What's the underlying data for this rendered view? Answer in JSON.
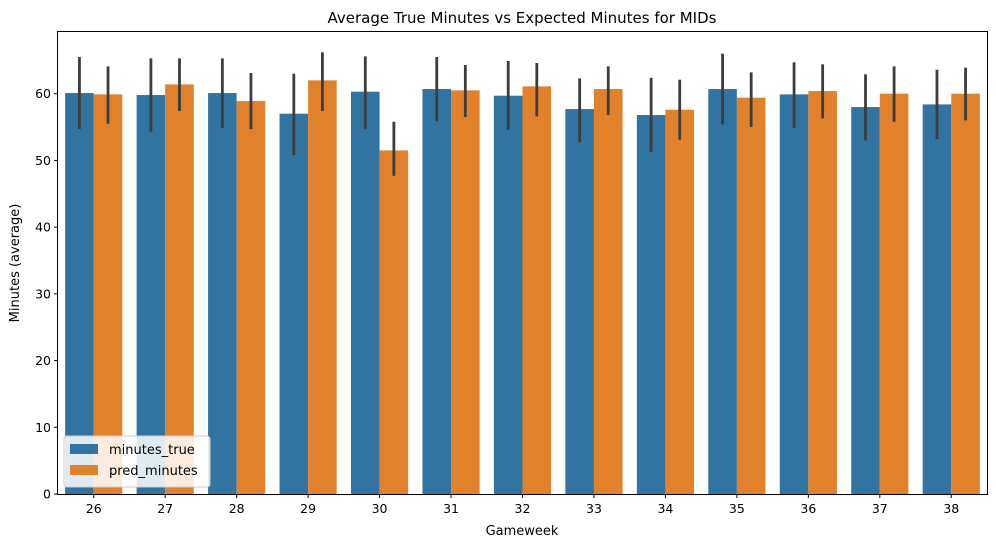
{
  "chart_data": {
    "type": "bar",
    "title": "Average True Minutes vs Expected Minutes for MIDs",
    "xlabel": "Gameweek",
    "ylabel": "Minutes (average)",
    "categories": [
      "26",
      "27",
      "28",
      "29",
      "30",
      "31",
      "32",
      "33",
      "34",
      "35",
      "36",
      "37",
      "38"
    ],
    "ylim": [
      0,
      69.4
    ],
    "yticks": [
      0,
      10,
      20,
      30,
      40,
      50,
      60
    ],
    "grid": false,
    "legend_position": "lower-left",
    "series": [
      {
        "name": "minutes_true",
        "color": "#3274a1",
        "values": [
          60.1,
          59.8,
          60.1,
          57.0,
          60.3,
          60.7,
          59.7,
          57.7,
          56.8,
          60.7,
          59.9,
          58.0,
          58.4
        ],
        "err_low": [
          54.7,
          54.3,
          54.9,
          50.8,
          54.7,
          55.9,
          54.6,
          52.7,
          51.3,
          55.4,
          54.9,
          53.0,
          53.2
        ],
        "err_high": [
          65.5,
          65.3,
          65.3,
          63.0,
          65.6,
          65.5,
          64.9,
          62.3,
          62.4,
          66.0,
          64.7,
          62.9,
          63.6
        ]
      },
      {
        "name": "pred_minutes",
        "color": "#e1812c",
        "values": [
          59.9,
          61.4,
          58.9,
          62.0,
          51.5,
          60.5,
          61.1,
          60.7,
          57.6,
          59.4,
          60.4,
          60.0,
          60.0
        ],
        "err_low": [
          55.5,
          57.4,
          54.7,
          57.4,
          47.7,
          56.5,
          56.6,
          56.8,
          53.1,
          55.0,
          56.3,
          55.8,
          56.0
        ],
        "err_high": [
          64.1,
          65.3,
          63.1,
          66.2,
          55.8,
          64.3,
          64.6,
          64.1,
          62.1,
          63.2,
          64.4,
          64.1,
          63.9
        ]
      }
    ]
  }
}
